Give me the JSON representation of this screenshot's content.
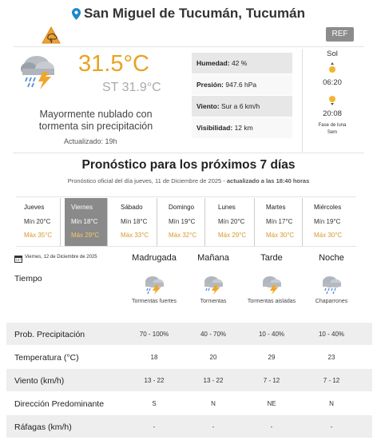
{
  "header": {
    "location": "San Miguel de Tucumán, Tucumán",
    "ref_label": "REF"
  },
  "current": {
    "temperature": "31.5°C",
    "feels_like": "ST 31.9°C",
    "description": "Mayormente nublado con tormenta sin precipitación",
    "updated": "Actualizado: 19h",
    "conditions": [
      {
        "label": "Humedad:",
        "value": "42 %"
      },
      {
        "label": "Presión:",
        "value": "947.6 hPa"
      },
      {
        "label": "Viento:",
        "value": "Sur a 6 km/h"
      },
      {
        "label": "Visibilidad:",
        "value": "12 km"
      }
    ],
    "sun": {
      "title": "Sol",
      "sunrise": "06:20",
      "sunset": "20:08",
      "moon_phase": "Fase de luna",
      "moon_sub": "Sem"
    }
  },
  "forecast": {
    "title": "Pronóstico para los próximos 7 días",
    "subtitle_plain": "Pronóstico oficial del día jueves, 11 de Diciembre de 2025 - ",
    "subtitle_bold": "actualizado a las 18:40 horas",
    "days": [
      {
        "name": "Jueves",
        "min": "Mín 20°C",
        "max": "Máx 35°C"
      },
      {
        "name": "Viernes",
        "min": "Mín 18°C",
        "max": "Máx 29°C"
      },
      {
        "name": "Sábado",
        "min": "Mín 18°C",
        "max": "Máx 33°C"
      },
      {
        "name": "Domingo",
        "min": "Mín 19°C",
        "max": "Máx 32°C"
      },
      {
        "name": "Lunes",
        "min": "Mín 20°C",
        "max": "Máx 29°C"
      },
      {
        "name": "Martes",
        "min": "Mín 17°C",
        "max": "Máx 30°C"
      },
      {
        "name": "Miércoles",
        "min": "Mín 19°C",
        "max": "Máx 30°C"
      }
    ],
    "selected_day": 1
  },
  "detail": {
    "date": "Viernes, 12 de Diciembre de 2025",
    "periods": [
      "Madrugada",
      "Mañana",
      "Tarde",
      "Noche"
    ],
    "tiempo_label": "Tiempo",
    "weather": [
      "Tormentas fuertes",
      "Tormentas",
      "Tormentas aisladas",
      "Chaparrones"
    ],
    "weather_icons": [
      "storm-icon",
      "storm-icon",
      "storm-icon",
      "rain-showers-icon"
    ],
    "rows": [
      {
        "label": "Prob. Precipitación",
        "values": [
          "70 - 100%",
          "40 - 70%",
          "10 - 40%",
          "10 - 40%"
        ]
      },
      {
        "label": "Temperatura (°C)",
        "values": [
          "18",
          "20",
          "29",
          "23"
        ]
      },
      {
        "label": "Viento (km/h)",
        "values": [
          "13 - 22",
          "13 - 22",
          "7 - 12",
          "7 - 12"
        ]
      },
      {
        "label": "Dirección Predominante",
        "values": [
          "S",
          "N",
          "NE",
          "N"
        ]
      },
      {
        "label": "Ráfagas (km/h)",
        "values": [
          "-",
          "-",
          "-",
          "-"
        ]
      }
    ]
  },
  "colors": {
    "accent_temp": "#e8a321",
    "max_temp": "#d69a2c",
    "selected_day_bg": "#8a8a8a",
    "pin": "#1e88c9"
  }
}
